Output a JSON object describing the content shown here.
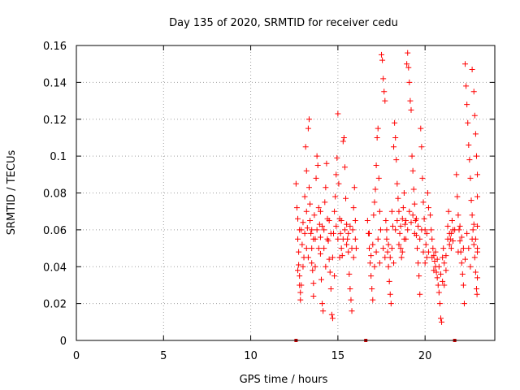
{
  "chart_data": {
    "type": "scatter",
    "title": "Day 135 of 2020, SRMTID for receiver cedu",
    "xlabel": "GPS time / hours",
    "ylabel": "SRMTID / TECUs",
    "xlim": [
      0,
      24
    ],
    "ylim": [
      0,
      0.16
    ],
    "x_ticks": [
      0,
      5,
      10,
      15,
      20
    ],
    "x_tick_labels": [
      "0",
      "5",
      "10",
      "15",
      "20"
    ],
    "y_ticks": [
      0,
      0.02,
      0.04,
      0.06,
      0.08,
      0.1,
      0.12,
      0.14,
      0.16
    ],
    "y_tick_labels": [
      "0",
      "0.02",
      "0.04",
      "0.06",
      "0.08",
      "0.1",
      "0.12",
      "0.14",
      "0.16"
    ],
    "grid": true,
    "marker": "+",
    "color": "#ff0000",
    "zero_markers_x": [
      12.6,
      16.6,
      21.7
    ],
    "series": [
      {
        "name": "SRMTID",
        "points": [
          [
            12.6,
            0.085
          ],
          [
            12.65,
            0.072
          ],
          [
            12.7,
            0.066
          ],
          [
            12.7,
            0.055
          ],
          [
            12.75,
            0.048
          ],
          [
            12.75,
            0.041
          ],
          [
            12.8,
            0.035
          ],
          [
            12.8,
            0.03
          ],
          [
            12.85,
            0.026
          ],
          [
            12.85,
            0.022
          ],
          [
            12.9,
            0.06
          ],
          [
            12.95,
            0.052
          ],
          [
            13.0,
            0.064
          ],
          [
            13.05,
            0.045
          ],
          [
            13.1,
            0.078
          ],
          [
            13.15,
            0.105
          ],
          [
            13.2,
            0.092
          ],
          [
            13.2,
            0.07
          ],
          [
            13.25,
            0.061
          ],
          [
            13.3,
            0.115
          ],
          [
            13.35,
            0.12
          ],
          [
            13.35,
            0.083
          ],
          [
            13.4,
            0.074
          ],
          [
            13.45,
            0.058
          ],
          [
            13.5,
            0.05
          ],
          [
            13.5,
            0.042
          ],
          [
            13.55,
            0.038
          ],
          [
            13.6,
            0.031
          ],
          [
            13.6,
            0.024
          ],
          [
            13.65,
            0.068
          ],
          [
            13.7,
            0.055
          ],
          [
            13.75,
            0.088
          ],
          [
            13.8,
            0.1
          ],
          [
            13.85,
            0.095
          ],
          [
            13.9,
            0.072
          ],
          [
            13.95,
            0.063
          ],
          [
            14.0,
            0.056
          ],
          [
            14.0,
            0.047
          ],
          [
            14.05,
            0.033
          ],
          [
            14.1,
            0.02
          ],
          [
            14.15,
            0.016
          ],
          [
            14.2,
            0.06
          ],
          [
            14.25,
            0.075
          ],
          [
            14.3,
            0.083
          ],
          [
            14.35,
            0.096
          ],
          [
            14.4,
            0.066
          ],
          [
            14.45,
            0.054
          ],
          [
            14.5,
            0.044
          ],
          [
            14.55,
            0.037
          ],
          [
            14.6,
            0.028
          ],
          [
            14.65,
            0.014
          ],
          [
            14.7,
            0.012
          ],
          [
            14.75,
            0.058
          ],
          [
            14.8,
            0.07
          ],
          [
            14.85,
            0.078
          ],
          [
            14.9,
            0.09
          ],
          [
            14.95,
            0.099
          ],
          [
            15.0,
            0.123
          ],
          [
            15.05,
            0.085
          ],
          [
            15.1,
            0.066
          ],
          [
            15.15,
            0.058
          ],
          [
            15.2,
            0.05
          ],
          [
            15.25,
            0.046
          ],
          [
            15.3,
            0.108
          ],
          [
            15.35,
            0.11
          ],
          [
            15.4,
            0.094
          ],
          [
            15.45,
            0.077
          ],
          [
            15.5,
            0.063
          ],
          [
            15.55,
            0.055
          ],
          [
            15.6,
            0.048
          ],
          [
            15.65,
            0.036
          ],
          [
            15.7,
            0.028
          ],
          [
            15.75,
            0.022
          ],
          [
            15.8,
            0.016
          ],
          [
            15.85,
            0.06
          ],
          [
            15.9,
            0.072
          ],
          [
            15.95,
            0.083
          ],
          [
            16.0,
            0.065
          ],
          [
            16.05,
            0.05
          ],
          [
            16.7,
            0.065
          ],
          [
            16.75,
            0.058
          ],
          [
            16.8,
            0.05
          ],
          [
            16.85,
            0.042
          ],
          [
            16.9,
            0.035
          ],
          [
            16.95,
            0.028
          ],
          [
            17.0,
            0.022
          ],
          [
            17.05,
            0.068
          ],
          [
            17.1,
            0.075
          ],
          [
            17.15,
            0.082
          ],
          [
            17.2,
            0.095
          ],
          [
            17.25,
            0.11
          ],
          [
            17.3,
            0.115
          ],
          [
            17.35,
            0.088
          ],
          [
            17.4,
            0.07
          ],
          [
            17.45,
            0.06
          ],
          [
            17.5,
            0.155
          ],
          [
            17.55,
            0.152
          ],
          [
            17.6,
            0.142
          ],
          [
            17.65,
            0.135
          ],
          [
            17.7,
            0.13
          ],
          [
            17.75,
            0.065
          ],
          [
            17.8,
            0.055
          ],
          [
            17.85,
            0.048
          ],
          [
            17.9,
            0.04
          ],
          [
            17.95,
            0.032
          ],
          [
            18.0,
            0.025
          ],
          [
            18.05,
            0.02
          ],
          [
            18.1,
            0.07
          ],
          [
            18.15,
            0.062
          ],
          [
            18.2,
            0.105
          ],
          [
            18.25,
            0.118
          ],
          [
            18.3,
            0.11
          ],
          [
            18.35,
            0.098
          ],
          [
            18.4,
            0.085
          ],
          [
            18.45,
            0.077
          ],
          [
            18.5,
            0.07
          ],
          [
            18.55,
            0.058
          ],
          [
            18.6,
            0.05
          ],
          [
            18.65,
            0.045
          ],
          [
            18.7,
            0.066
          ],
          [
            18.75,
            0.072
          ],
          [
            18.8,
            0.08
          ],
          [
            18.85,
            0.063
          ],
          [
            18.9,
            0.055
          ],
          [
            18.95,
            0.15
          ],
          [
            19.0,
            0.156
          ],
          [
            19.05,
            0.148
          ],
          [
            19.1,
            0.14
          ],
          [
            19.15,
            0.13
          ],
          [
            19.2,
            0.125
          ],
          [
            19.25,
            0.1
          ],
          [
            19.3,
            0.092
          ],
          [
            19.35,
            0.082
          ],
          [
            19.4,
            0.074
          ],
          [
            19.45,
            0.065
          ],
          [
            19.5,
            0.057
          ],
          [
            19.55,
            0.05
          ],
          [
            19.6,
            0.042
          ],
          [
            19.65,
            0.035
          ],
          [
            19.7,
            0.025
          ],
          [
            19.75,
            0.115
          ],
          [
            19.8,
            0.105
          ],
          [
            19.85,
            0.088
          ],
          [
            19.9,
            0.075
          ],
          [
            19.95,
            0.066
          ],
          [
            20.0,
            0.06
          ],
          [
            20.05,
            0.052
          ],
          [
            20.1,
            0.045
          ],
          [
            20.15,
            0.08
          ],
          [
            20.2,
            0.072
          ],
          [
            20.3,
            0.068
          ],
          [
            20.35,
            0.06
          ],
          [
            20.4,
            0.055
          ],
          [
            20.45,
            0.05
          ],
          [
            20.5,
            0.046
          ],
          [
            20.55,
            0.043
          ],
          [
            20.6,
            0.04
          ],
          [
            20.65,
            0.037
          ],
          [
            20.7,
            0.034
          ],
          [
            20.75,
            0.03
          ],
          [
            20.8,
            0.026
          ],
          [
            20.85,
            0.02
          ],
          [
            20.9,
            0.012
          ],
          [
            20.95,
            0.01
          ],
          [
            21.0,
            0.045
          ],
          [
            21.05,
            0.05
          ],
          [
            21.1,
            0.042
          ],
          [
            21.2,
            0.038
          ],
          [
            21.3,
            0.062
          ],
          [
            21.35,
            0.07
          ],
          [
            21.4,
            0.058
          ],
          [
            21.45,
            0.055
          ],
          [
            21.5,
            0.05
          ],
          [
            21.55,
            0.065
          ],
          [
            21.6,
            0.06
          ],
          [
            21.8,
            0.09
          ],
          [
            21.85,
            0.078
          ],
          [
            21.9,
            0.068
          ],
          [
            21.95,
            0.06
          ],
          [
            22.0,
            0.054
          ],
          [
            22.05,
            0.048
          ],
          [
            22.1,
            0.042
          ],
          [
            22.15,
            0.036
          ],
          [
            22.2,
            0.03
          ],
          [
            22.25,
            0.02
          ],
          [
            22.3,
            0.15
          ],
          [
            22.35,
            0.138
          ],
          [
            22.4,
            0.128
          ],
          [
            22.45,
            0.118
          ],
          [
            22.5,
            0.106
          ],
          [
            22.55,
            0.098
          ],
          [
            22.6,
            0.088
          ],
          [
            22.65,
            0.076
          ],
          [
            22.7,
            0.068
          ],
          [
            22.75,
            0.06
          ],
          [
            22.8,
            0.052
          ],
          [
            22.85,
            0.045
          ],
          [
            22.9,
            0.037
          ],
          [
            22.95,
            0.028
          ],
          [
            22.98,
            0.025
          ],
          [
            22.7,
            0.147
          ],
          [
            22.8,
            0.135
          ],
          [
            22.85,
            0.122
          ],
          [
            22.9,
            0.112
          ],
          [
            22.95,
            0.1
          ],
          [
            23.0,
            0.09
          ],
          [
            23.0,
            0.078
          ],
          [
            23.0,
            0.062
          ],
          [
            23.0,
            0.05
          ],
          [
            23.0,
            0.034
          ],
          [
            12.7,
            0.038
          ],
          [
            12.8,
            0.06
          ],
          [
            12.9,
            0.03
          ],
          [
            13.0,
            0.04
          ],
          [
            13.1,
            0.058
          ],
          [
            13.2,
            0.05
          ],
          [
            13.3,
            0.045
          ],
          [
            13.4,
            0.065
          ],
          [
            13.5,
            0.06
          ],
          [
            13.6,
            0.055
          ],
          [
            13.7,
            0.04
          ],
          [
            13.8,
            0.06
          ],
          [
            13.9,
            0.05
          ],
          [
            14.0,
            0.07
          ],
          [
            14.1,
            0.062
          ],
          [
            14.2,
            0.05
          ],
          [
            14.3,
            0.04
          ],
          [
            14.4,
            0.055
          ],
          [
            14.5,
            0.065
          ],
          [
            14.6,
            0.058
          ],
          [
            14.7,
            0.045
          ],
          [
            14.8,
            0.035
          ],
          [
            14.9,
            0.062
          ],
          [
            15.0,
            0.055
          ],
          [
            15.1,
            0.045
          ],
          [
            15.2,
            0.065
          ],
          [
            15.3,
            0.055
          ],
          [
            15.4,
            0.06
          ],
          [
            15.5,
            0.052
          ],
          [
            15.6,
            0.058
          ],
          [
            15.7,
            0.062
          ],
          [
            15.8,
            0.05
          ],
          [
            15.9,
            0.045
          ],
          [
            16.0,
            0.055
          ],
          [
            16.8,
            0.058
          ],
          [
            16.9,
            0.046
          ],
          [
            17.0,
            0.052
          ],
          [
            17.1,
            0.04
          ],
          [
            17.2,
            0.048
          ],
          [
            17.3,
            0.055
          ],
          [
            17.4,
            0.042
          ],
          [
            17.6,
            0.05
          ],
          [
            17.7,
            0.045
          ],
          [
            17.8,
            0.06
          ],
          [
            17.9,
            0.052
          ],
          [
            18.0,
            0.045
          ],
          [
            18.1,
            0.05
          ],
          [
            18.2,
            0.042
          ],
          [
            18.3,
            0.06
          ],
          [
            18.4,
            0.065
          ],
          [
            18.5,
            0.052
          ],
          [
            18.6,
            0.062
          ],
          [
            18.7,
            0.048
          ],
          [
            18.8,
            0.055
          ],
          [
            18.9,
            0.065
          ],
          [
            19.0,
            0.06
          ],
          [
            19.1,
            0.07
          ],
          [
            19.2,
            0.064
          ],
          [
            19.3,
            0.068
          ],
          [
            19.4,
            0.058
          ],
          [
            19.5,
            0.066
          ],
          [
            19.6,
            0.062
          ],
          [
            19.7,
            0.055
          ],
          [
            19.8,
            0.06
          ],
          [
            19.9,
            0.048
          ],
          [
            20.0,
            0.042
          ],
          [
            20.1,
            0.058
          ],
          [
            20.2,
            0.048
          ],
          [
            20.4,
            0.045
          ],
          [
            20.5,
            0.038
          ],
          [
            20.6,
            0.048
          ],
          [
            20.7,
            0.044
          ],
          [
            20.8,
            0.04
          ],
          [
            20.9,
            0.036
          ],
          [
            21.0,
            0.032
          ],
          [
            21.1,
            0.03
          ],
          [
            21.2,
            0.046
          ],
          [
            21.3,
            0.055
          ],
          [
            21.4,
            0.052
          ],
          [
            21.5,
            0.058
          ],
          [
            21.6,
            0.054
          ],
          [
            21.7,
            0.06
          ],
          [
            21.9,
            0.048
          ],
          [
            22.0,
            0.062
          ],
          [
            22.1,
            0.056
          ],
          [
            22.2,
            0.05
          ],
          [
            22.3,
            0.044
          ],
          [
            22.4,
            0.058
          ],
          [
            22.5,
            0.05
          ],
          [
            22.6,
            0.04
          ],
          [
            22.7,
            0.055
          ],
          [
            22.8,
            0.063
          ],
          [
            22.9,
            0.055
          ],
          [
            23.0,
            0.048
          ]
        ]
      }
    ]
  }
}
